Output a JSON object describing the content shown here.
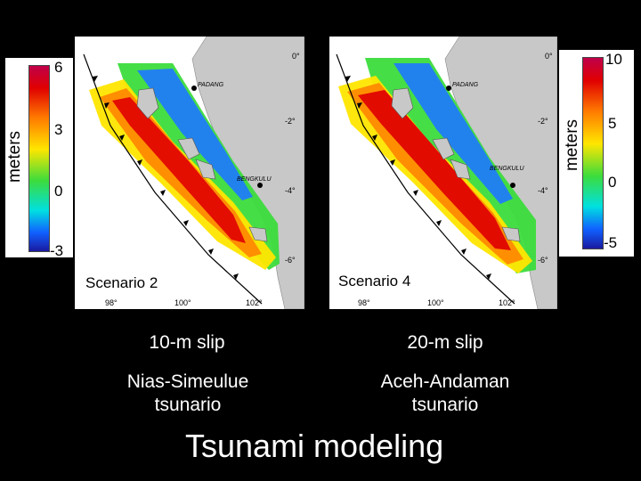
{
  "left_colorbar": {
    "label": "meters",
    "ticks": [
      "6",
      "3",
      "0",
      "-3"
    ]
  },
  "right_colorbar": {
    "label": "meters",
    "ticks": [
      "10",
      "5",
      "0",
      "-5"
    ]
  },
  "left_map": {
    "scenario": "Scenario 2",
    "city1": "PADANG",
    "city2": "BENGKULU",
    "lat_ticks": [
      "0°",
      "-2°",
      "-4°",
      "-6°"
    ],
    "lon_ticks": [
      "98°",
      "100°",
      "102°"
    ]
  },
  "right_map": {
    "scenario": "Scenario 4",
    "city1": "PADANG",
    "city2": "BENGKULU",
    "lat_ticks": [
      "0°",
      "-2°",
      "-4°",
      "-6°"
    ],
    "lon_ticks": [
      "98°",
      "100°",
      "102°"
    ]
  },
  "captions": {
    "left_slip": "10-m slip",
    "right_slip": "20-m slip",
    "left_source": "Nias-Simeulue tsunario",
    "right_source": "Aceh-Andaman tsunario"
  },
  "title": "Tsunami modeling",
  "colors": {
    "background": "#000000",
    "land": "#c8c8c8",
    "ocean": "#ffffff"
  }
}
